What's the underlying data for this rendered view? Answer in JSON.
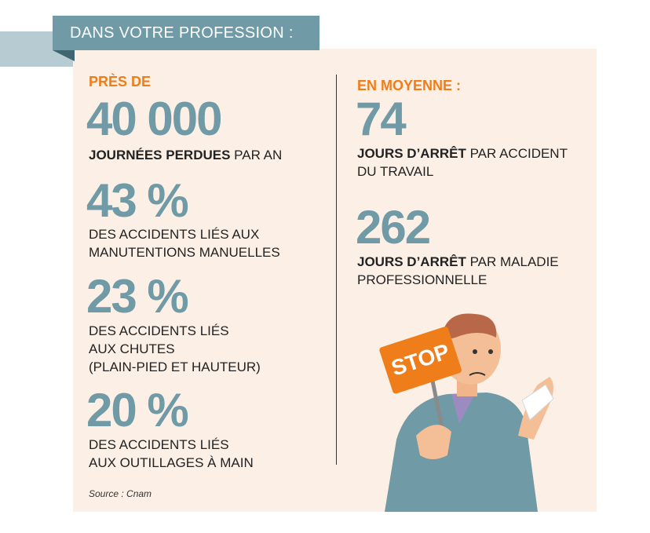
{
  "header": {
    "title": "DANS VOTRE PROFESSION :"
  },
  "left_column": {
    "intro": "PRÈS DE",
    "stats": [
      {
        "figure": "40 000",
        "bold": "JOURNÉES PERDUES",
        "text": [
          "PAR AN"
        ]
      },
      {
        "figure": "43 %",
        "text": [
          "DES ACCIDENTS LIÉS AUX",
          "MANUTENTIONS MANUELLES"
        ]
      },
      {
        "figure": "23 %",
        "text": [
          "DES ACCIDENTS LIÉS",
          "AUX CHUTES",
          "(PLAIN-PIED ET HAUTEUR)"
        ]
      },
      {
        "figure": "20 %",
        "text": [
          "DES ACCIDENTS LIÉS",
          "AUX OUTILLAGES À MAIN"
        ]
      }
    ]
  },
  "right_column": {
    "intro": "EN MOYENNE :",
    "stats": [
      {
        "figure": "74",
        "bold": "JOURS D’ARRÊT",
        "text": [
          "PAR ACCIDENT",
          "DU TRAVAIL"
        ]
      },
      {
        "figure": "262",
        "bold": "JOURS D’ARRÊT",
        "text": [
          "PAR MALADIE",
          "PROFESSIONNELLE"
        ]
      }
    ]
  },
  "source": "Source : Cnam",
  "illustration": {
    "sign": "STOP"
  }
}
